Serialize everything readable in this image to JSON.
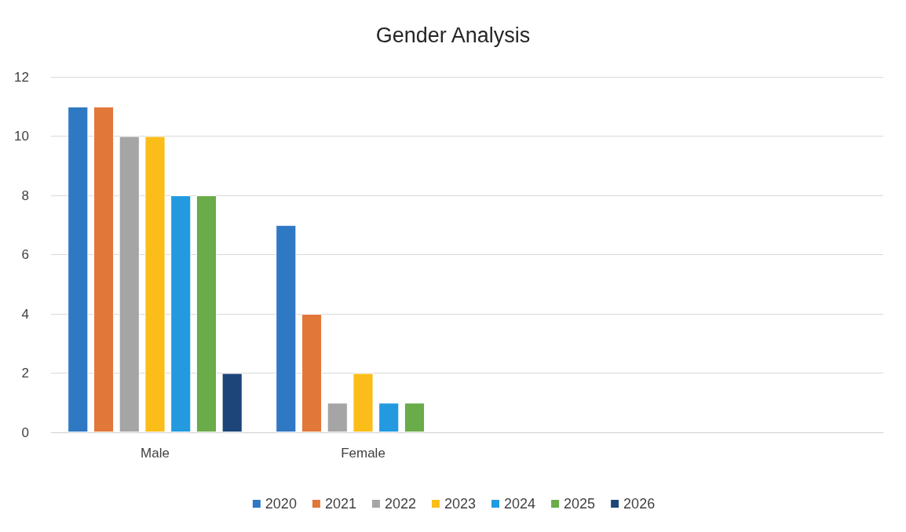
{
  "chart_data": {
    "type": "bar",
    "title": "Gender Analysis",
    "categories": [
      "Male",
      "Female",
      null,
      null
    ],
    "series": [
      {
        "name": "2020",
        "color": "#2f78c4",
        "values": [
          11,
          7,
          null,
          null
        ]
      },
      {
        "name": "2021",
        "color": "#e2773a",
        "values": [
          11,
          4,
          null,
          null
        ]
      },
      {
        "name": "2022",
        "color": "#a5a5a5",
        "values": [
          10,
          1,
          null,
          null
        ]
      },
      {
        "name": "2023",
        "color": "#fbbd1a",
        "values": [
          10,
          2,
          null,
          null
        ]
      },
      {
        "name": "2024",
        "color": "#239ae0",
        "values": [
          8,
          1,
          null,
          null
        ]
      },
      {
        "name": "2025",
        "color": "#6aab4a",
        "values": [
          8,
          1,
          null,
          null
        ]
      },
      {
        "name": "2026",
        "color": "#1d4579",
        "values": [
          2,
          null,
          null,
          null
        ]
      }
    ],
    "ylim": [
      0,
      12
    ],
    "yticks": [
      0,
      2,
      4,
      6,
      8,
      10,
      12
    ],
    "grid": "y",
    "legend": "bottom"
  }
}
